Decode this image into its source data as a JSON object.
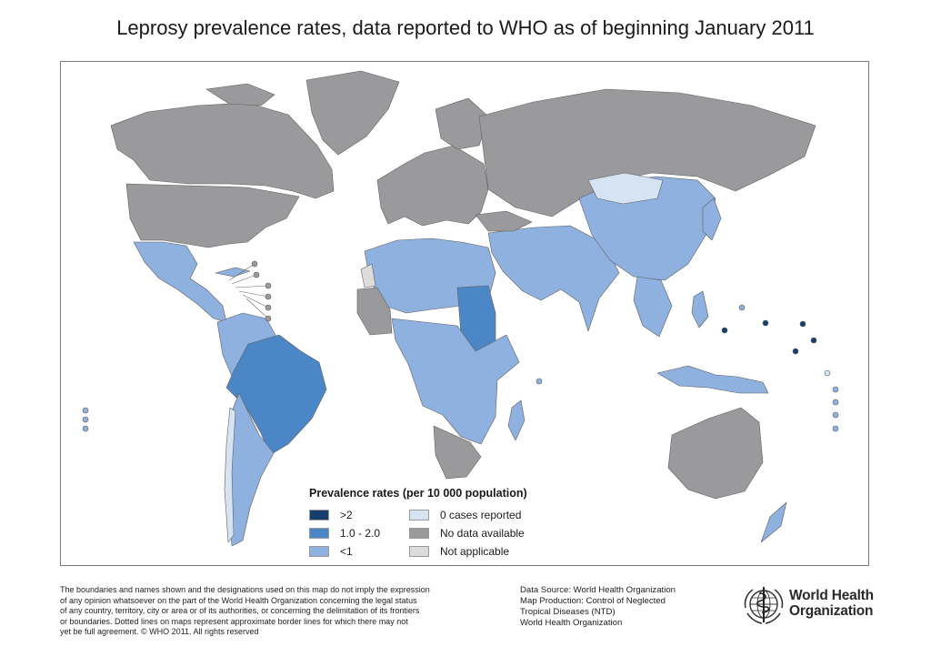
{
  "title": "Leprosy prevalence rates, data reported to WHO as of beginning January 2011",
  "legend": {
    "title": "Prevalence rates (per 10 000 population)",
    "items": [
      {
        "label": ">2",
        "color": "#163f6e"
      },
      {
        "label": "1.0 - 2.0",
        "color": "#4b86c6"
      },
      {
        "label": "<1",
        "color": "#8fb1df"
      },
      {
        "label": "0 cases reported",
        "color": "#d6e3f3"
      },
      {
        "label": "No data available",
        "color": "#9a9a9c"
      },
      {
        "label": "Not applicable",
        "color": "#dcdcdc"
      }
    ]
  },
  "disclaimer": {
    "lines": [
      "The boundaries and names shown and the designations used on this map do not imply the expression",
      "of any opinion whatsoever on the part of the World Health Organization concerning the legal status",
      "of any country, territory, city or area or of its authorities, or concerning the delimitation of its frontiers",
      "or boundaries. Dotted lines on maps represent approximate border lines for which there may not",
      "yet be full agreement. © WHO 2011. All rights reserved"
    ]
  },
  "source": {
    "lines": [
      "Data Source: World Health Organization",
      "Map Production: Control of Neglected",
      "Tropical Diseases (NTD)",
      "World Health Organization"
    ]
  },
  "logo": {
    "line1": "World Health",
    "line2": "Organization",
    "icon": "who-emblem-icon"
  },
  "colors": {
    "no_data": "#9a9a9c",
    "lt1": "#8fb1df",
    "mid": "#4b86c6",
    "gt2": "#163f6e",
    "zero": "#d6e3f3",
    "na": "#dcdcdc",
    "border": "#5a5a5a"
  }
}
